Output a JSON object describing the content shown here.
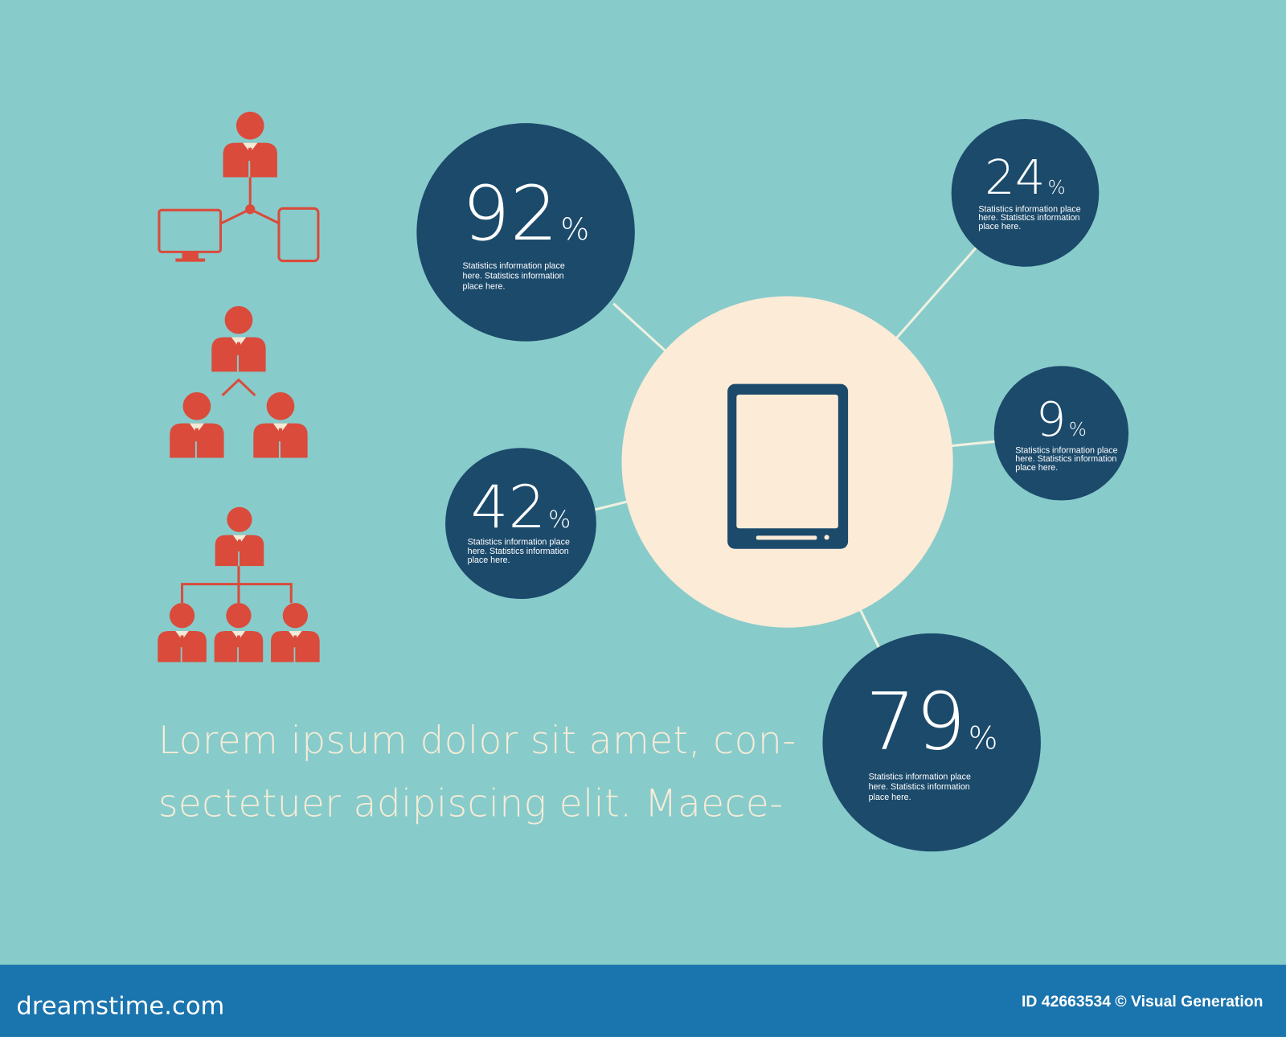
{
  "bubbles": [
    {
      "value": 92,
      "unit": "%",
      "text": [
        "Statistics information place",
        "here. Statistics information",
        "place here."
      ]
    },
    {
      "value": 24,
      "unit": "%",
      "text": [
        "Statistics information place",
        "here. Statistics information",
        "place here."
      ]
    },
    {
      "value": 9,
      "unit": "%",
      "text": [
        "Statistics information place",
        "here. Statistics information",
        "place here."
      ]
    },
    {
      "value": 42,
      "unit": "%",
      "text": [
        "Statistics information place",
        "here. Statistics information",
        "place here."
      ]
    },
    {
      "value": 79,
      "unit": "%",
      "text": [
        "Statistics information place",
        "here. Statistics information",
        "place here."
      ]
    }
  ],
  "body_text": [
    "Lorem ipsum dolor sit amet, con-",
    "sectetuer adipiscing elit. Maece-"
  ],
  "footer": {
    "site": "dreamstime.com",
    "credit": "ID 42663534 © Visual Generation"
  }
}
